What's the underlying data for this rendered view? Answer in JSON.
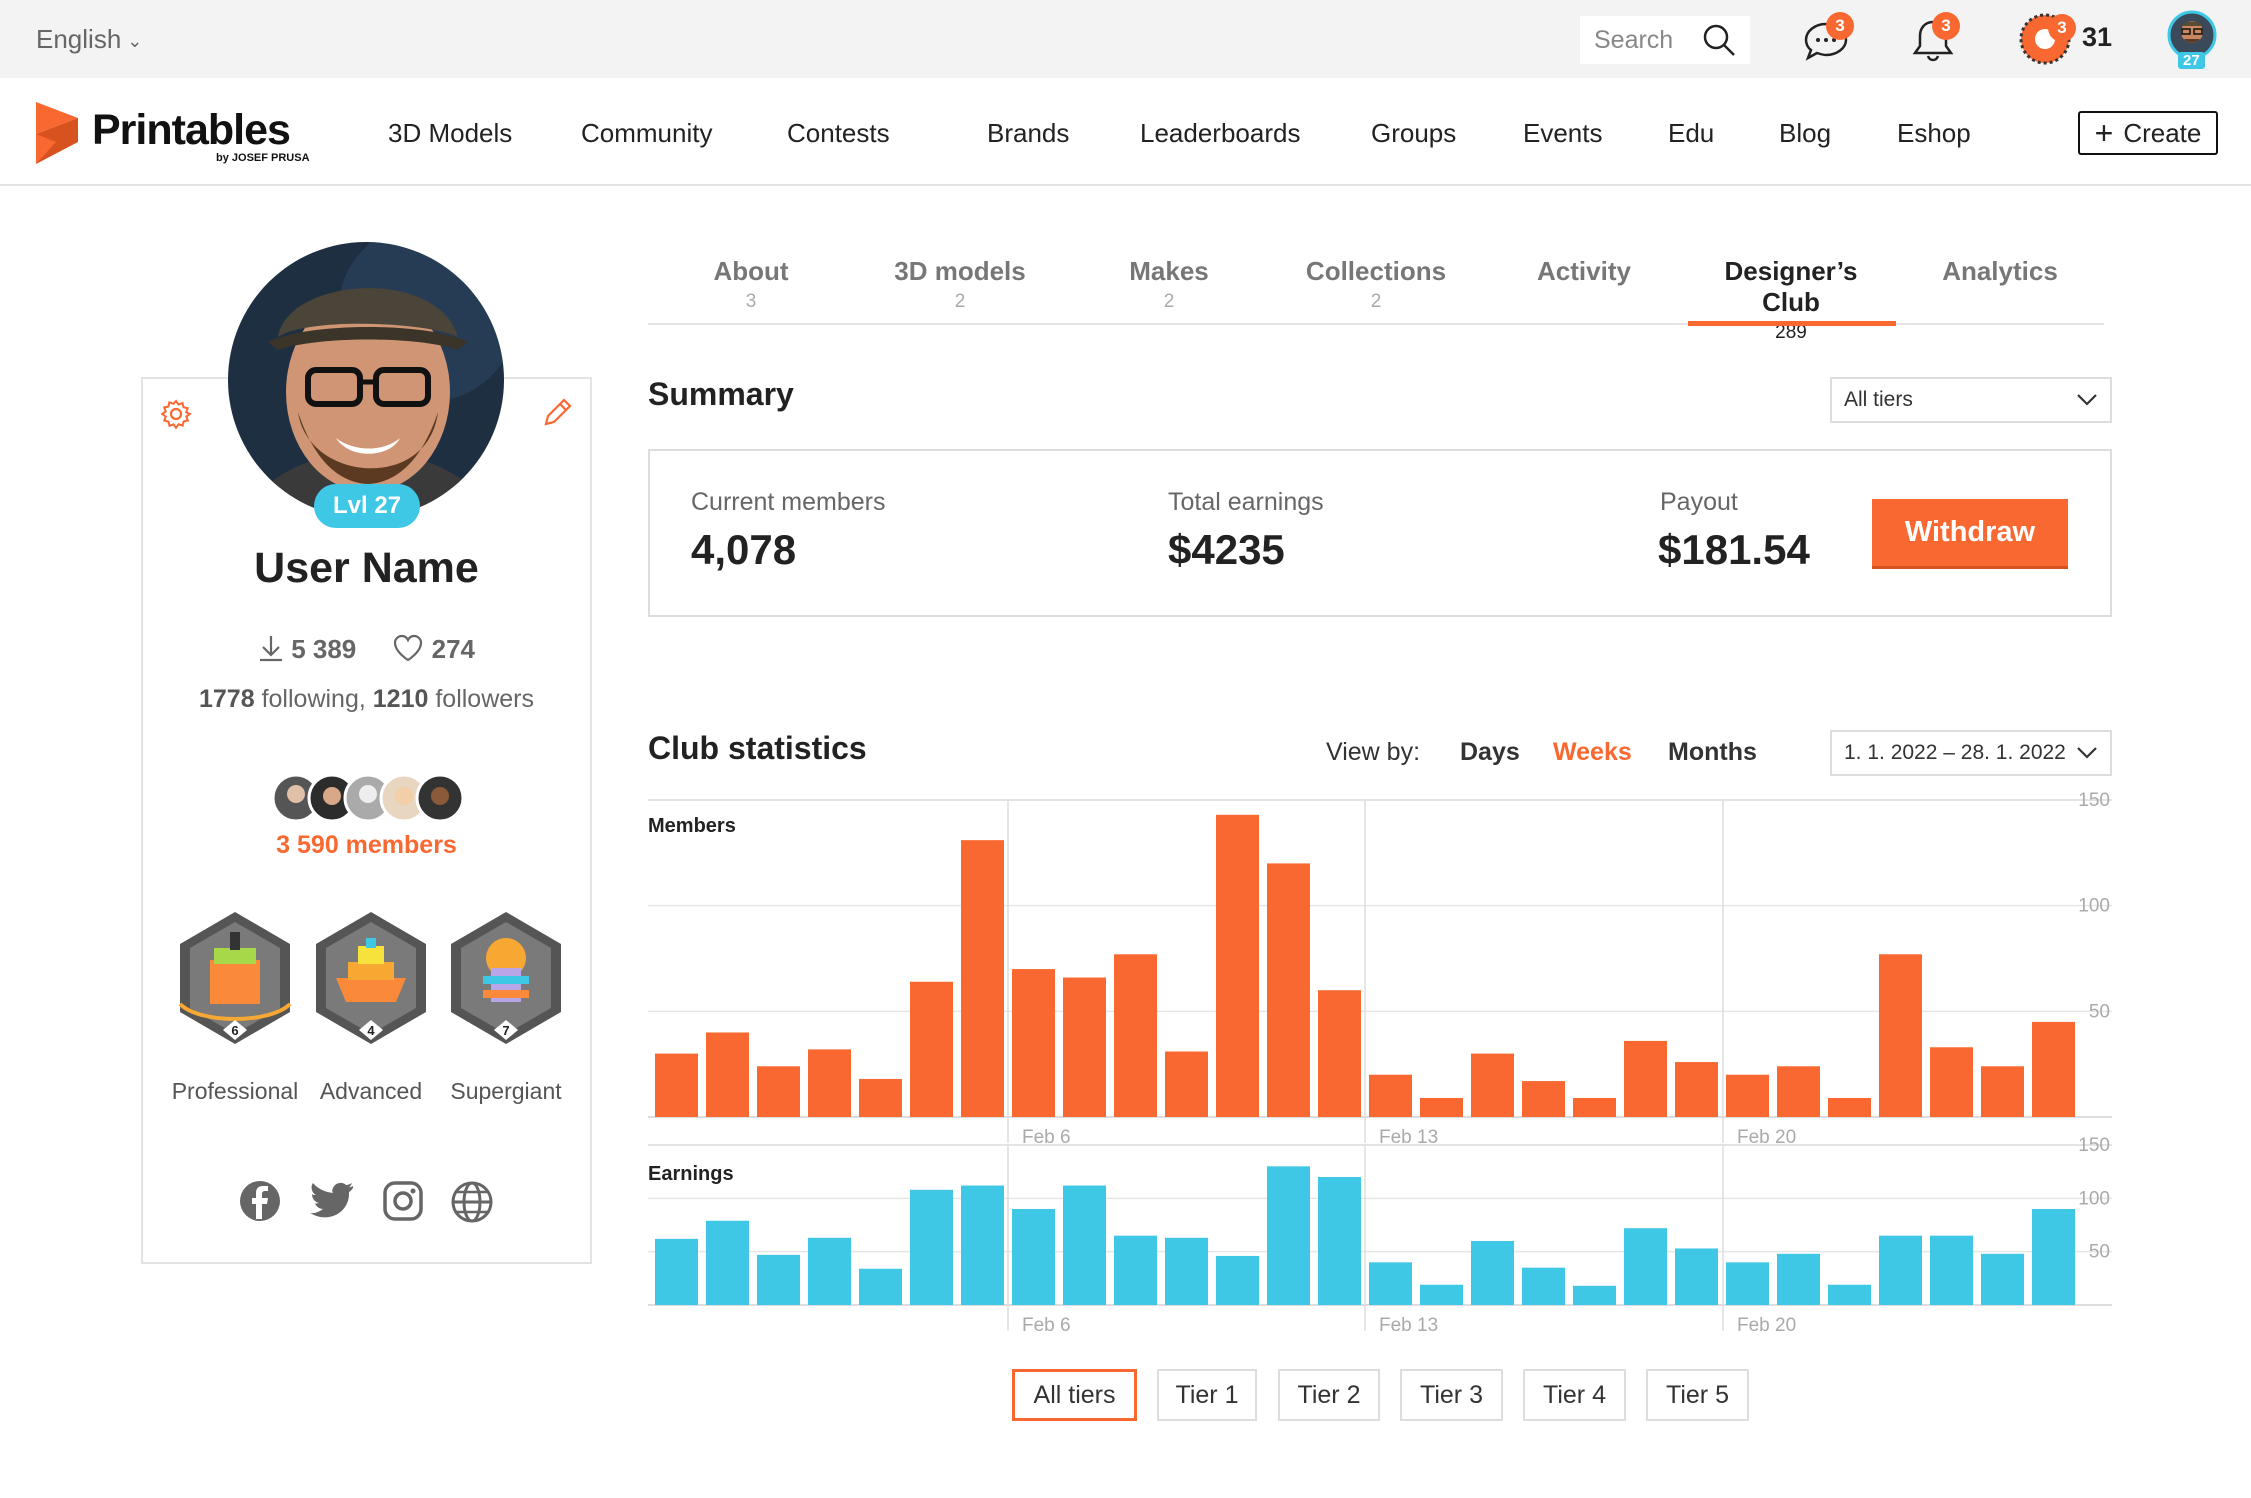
{
  "topbar": {
    "language": "English",
    "search_placeholder": "Search",
    "messages_badge": "3",
    "notifications_badge": "3",
    "prusameter_badge": "3",
    "prusameter_count": "31",
    "avatar_level": "27"
  },
  "brand": {
    "name": "Printables",
    "sub": "by JOSEF PRUSA"
  },
  "nav": [
    "3D Models",
    "Community",
    "Contests",
    "Brands",
    "Leaderboards",
    "Groups",
    "Events",
    "Edu",
    "Blog",
    "Eshop"
  ],
  "create_label": "Create",
  "profile": {
    "level": "Lvl 27",
    "name": "User Name",
    "downloads": "5 389",
    "likes": "274",
    "following_count": "1778",
    "following_label": "following,",
    "followers_count": "1210",
    "followers_label": "followers",
    "members": "3 590 members",
    "badges": [
      {
        "name": "Professional",
        "level": "6"
      },
      {
        "name": "Advanced",
        "level": "4"
      },
      {
        "name": "Supergiant",
        "level": "7"
      }
    ],
    "socials": [
      "facebook-icon",
      "twitter-icon",
      "instagram-icon",
      "globe-icon"
    ]
  },
  "tabs": [
    {
      "label": "About",
      "count": "3"
    },
    {
      "label": "3D models",
      "count": "2"
    },
    {
      "label": "Makes",
      "count": "2"
    },
    {
      "label": "Collections",
      "count": "2"
    },
    {
      "label": "Activity",
      "count": ""
    },
    {
      "label": "Designer’s Club",
      "count": "289",
      "active": true
    },
    {
      "label": "Analytics",
      "count": ""
    }
  ],
  "summary": {
    "title": "Summary",
    "tier_select": "All tiers",
    "current_members_label": "Current members",
    "current_members": "4,078",
    "total_earnings_label": "Total earnings",
    "total_earnings": "$4235",
    "payout_label": "Payout",
    "payout": "$181.54",
    "withdraw_label": "Withdraw"
  },
  "club_stats": {
    "title": "Club statistics",
    "view_by_label": "View by:",
    "view_options": [
      "Days",
      "Weeks",
      "Months"
    ],
    "active_view": "Weeks",
    "date_range": "1. 1. 2022 – 28. 1. 2022"
  },
  "tiers": [
    "All tiers",
    "Tier 1",
    "Tier 2",
    "Tier 3",
    "Tier 4",
    "Tier 5"
  ],
  "selected_tier": "All tiers",
  "colors": {
    "accent": "#fa6831",
    "earnings": "#3fc7e6"
  },
  "chart_data": [
    {
      "type": "bar",
      "title": "Members",
      "x_ticks": [
        "Feb 6",
        "Feb 13",
        "Feb 20"
      ],
      "y_ticks": [
        50,
        100,
        150
      ],
      "ylim": [
        0,
        150
      ],
      "grid": true,
      "color": "#fa6831",
      "values": [
        30,
        40,
        24,
        32,
        18,
        64,
        131,
        70,
        66,
        77,
        31,
        143,
        120,
        60,
        20,
        9,
        30,
        17,
        9,
        36,
        26,
        20,
        24,
        9,
        77,
        33,
        24,
        45
      ]
    },
    {
      "type": "bar",
      "title": "Earnings",
      "x_ticks": [
        "Feb 6",
        "Feb 13",
        "Feb 20"
      ],
      "y_ticks": [
        50,
        100,
        150
      ],
      "ylim": [
        0,
        150
      ],
      "grid": true,
      "color": "#3fc7e6",
      "values": [
        62,
        79,
        47,
        63,
        34,
        108,
        112,
        90,
        112,
        65,
        63,
        46,
        130,
        120,
        40,
        19,
        60,
        35,
        18,
        72,
        53,
        40,
        48,
        19,
        65,
        65,
        48,
        90
      ]
    }
  ]
}
